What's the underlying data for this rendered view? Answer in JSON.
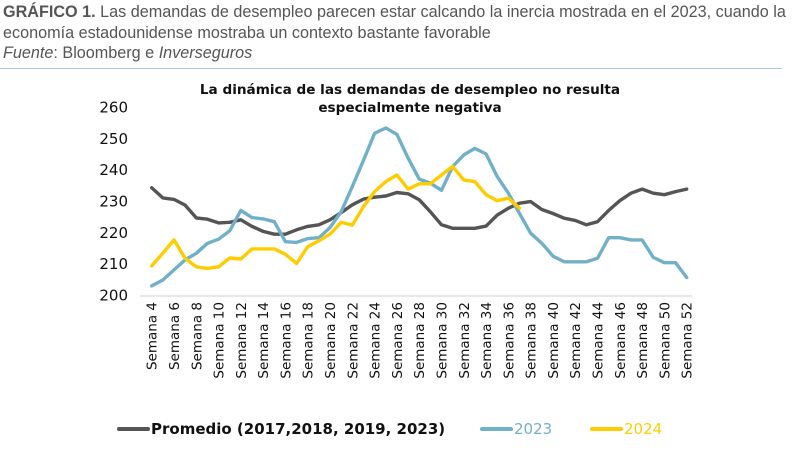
{
  "header": {
    "lead": "GRÁFICO 1.",
    "text": " Las demandas de desempleo parecen estar calcando la inercia mostrada en el 2023, cuando la economía estadounidense mostraba un contexto bastante favorable",
    "source_label": "Fuente",
    "source_sep": ": Bloomberg e ",
    "source_name": "Inverseguros"
  },
  "colors": {
    "promedio": "#555555",
    "y2023": "#71b0c9",
    "y2024": "#ffcc00",
    "axis": "#d9d9d9",
    "divider": "#a9c9dc"
  },
  "chart_data": {
    "type": "line",
    "title": "La dinámica de las demandas de desempleo no resulta especialmente negativa",
    "title_lines": [
      "La dinámica de las demandas de desempleo no resulta",
      "especialmente negativa"
    ],
    "xlabel": "",
    "ylabel": "",
    "ylim": [
      200,
      260
    ],
    "yticks": [
      200,
      210,
      220,
      230,
      240,
      250,
      260
    ],
    "grid": false,
    "legend_position": "bottom",
    "x": [
      4,
      5,
      6,
      7,
      8,
      9,
      10,
      11,
      12,
      13,
      14,
      15,
      16,
      17,
      18,
      19,
      20,
      21,
      22,
      23,
      24,
      25,
      26,
      27,
      28,
      29,
      30,
      31,
      32,
      33,
      34,
      35,
      36,
      37,
      38,
      39,
      40,
      41,
      42,
      43,
      44,
      45,
      46,
      47,
      48,
      49,
      50,
      51,
      52
    ],
    "xtick_labels": [
      "Semana 4",
      "Semana 6",
      "Semana 8",
      "Semana 10",
      "Semana 12",
      "Semana 14",
      "Semana 16",
      "Semana 18",
      "Semana 20",
      "Semana 22",
      "Semana 24",
      "Semana 26",
      "Semana 28",
      "Semana 30",
      "Semana 32",
      "Semana 34",
      "Semana 36",
      "Semana 38",
      "Semana 40",
      "Semana 42",
      "Semana 44",
      "Semana 46",
      "Semana 48",
      "Semana 50",
      "Semana 52"
    ],
    "xtick_weeks": [
      4,
      6,
      8,
      10,
      12,
      14,
      16,
      18,
      20,
      22,
      24,
      26,
      28,
      30,
      32,
      34,
      36,
      38,
      40,
      42,
      44,
      46,
      48,
      50,
      52
    ],
    "series": [
      {
        "name": "Promedio (2017,2018, 2019, 2023)",
        "key": "promedio",
        "values": [
          234.2,
          231.0,
          230.5,
          228.7,
          224.6,
          224.2,
          223.0,
          223.2,
          224.0,
          221.9,
          220.3,
          219.4,
          219.4,
          220.8,
          221.9,
          222.4,
          224.0,
          226.3,
          228.8,
          230.6,
          231.2,
          231.6,
          232.7,
          232.3,
          230.4,
          226.6,
          222.4,
          221.3,
          221.3,
          221.3,
          222.0,
          225.5,
          227.7,
          229.3,
          229.8,
          227.3,
          226.0,
          224.5,
          223.8,
          222.4,
          223.4,
          227.0,
          230.1,
          232.5,
          233.8,
          232.5,
          232.0,
          233.0,
          233.8
        ]
      },
      {
        "name": "2023",
        "key": "y2023",
        "values": [
          202.9,
          204.8,
          208.0,
          211.2,
          213.3,
          216.5,
          217.8,
          220.5,
          227.0,
          224.7,
          224.3,
          223.4,
          217.0,
          216.8,
          218.0,
          218.3,
          221.5,
          226.6,
          234.6,
          243.0,
          251.6,
          253.3,
          251.3,
          243.7,
          237.0,
          235.7,
          233.4,
          241.0,
          244.7,
          246.8,
          245.0,
          237.8,
          232.5,
          226.0,
          219.7,
          216.5,
          212.4,
          210.6,
          210.6,
          210.6,
          211.7,
          218.3,
          218.3,
          217.6,
          217.6,
          212.0,
          210.3,
          210.3,
          205.6
        ]
      },
      {
        "name": "2024",
        "key": "y2024",
        "values": [
          209.3,
          213.3,
          217.6,
          211.7,
          209.0,
          208.5,
          209.0,
          211.8,
          211.5,
          214.7,
          214.7,
          214.7,
          213.0,
          210.1,
          215.4,
          217.3,
          219.4,
          223.2,
          222.3,
          228.2,
          233.0,
          236.2,
          238.3,
          233.8,
          235.5,
          235.5,
          238.3,
          241.0,
          236.7,
          236.2,
          232.0,
          230.1,
          230.9,
          227.7
        ]
      }
    ]
  }
}
